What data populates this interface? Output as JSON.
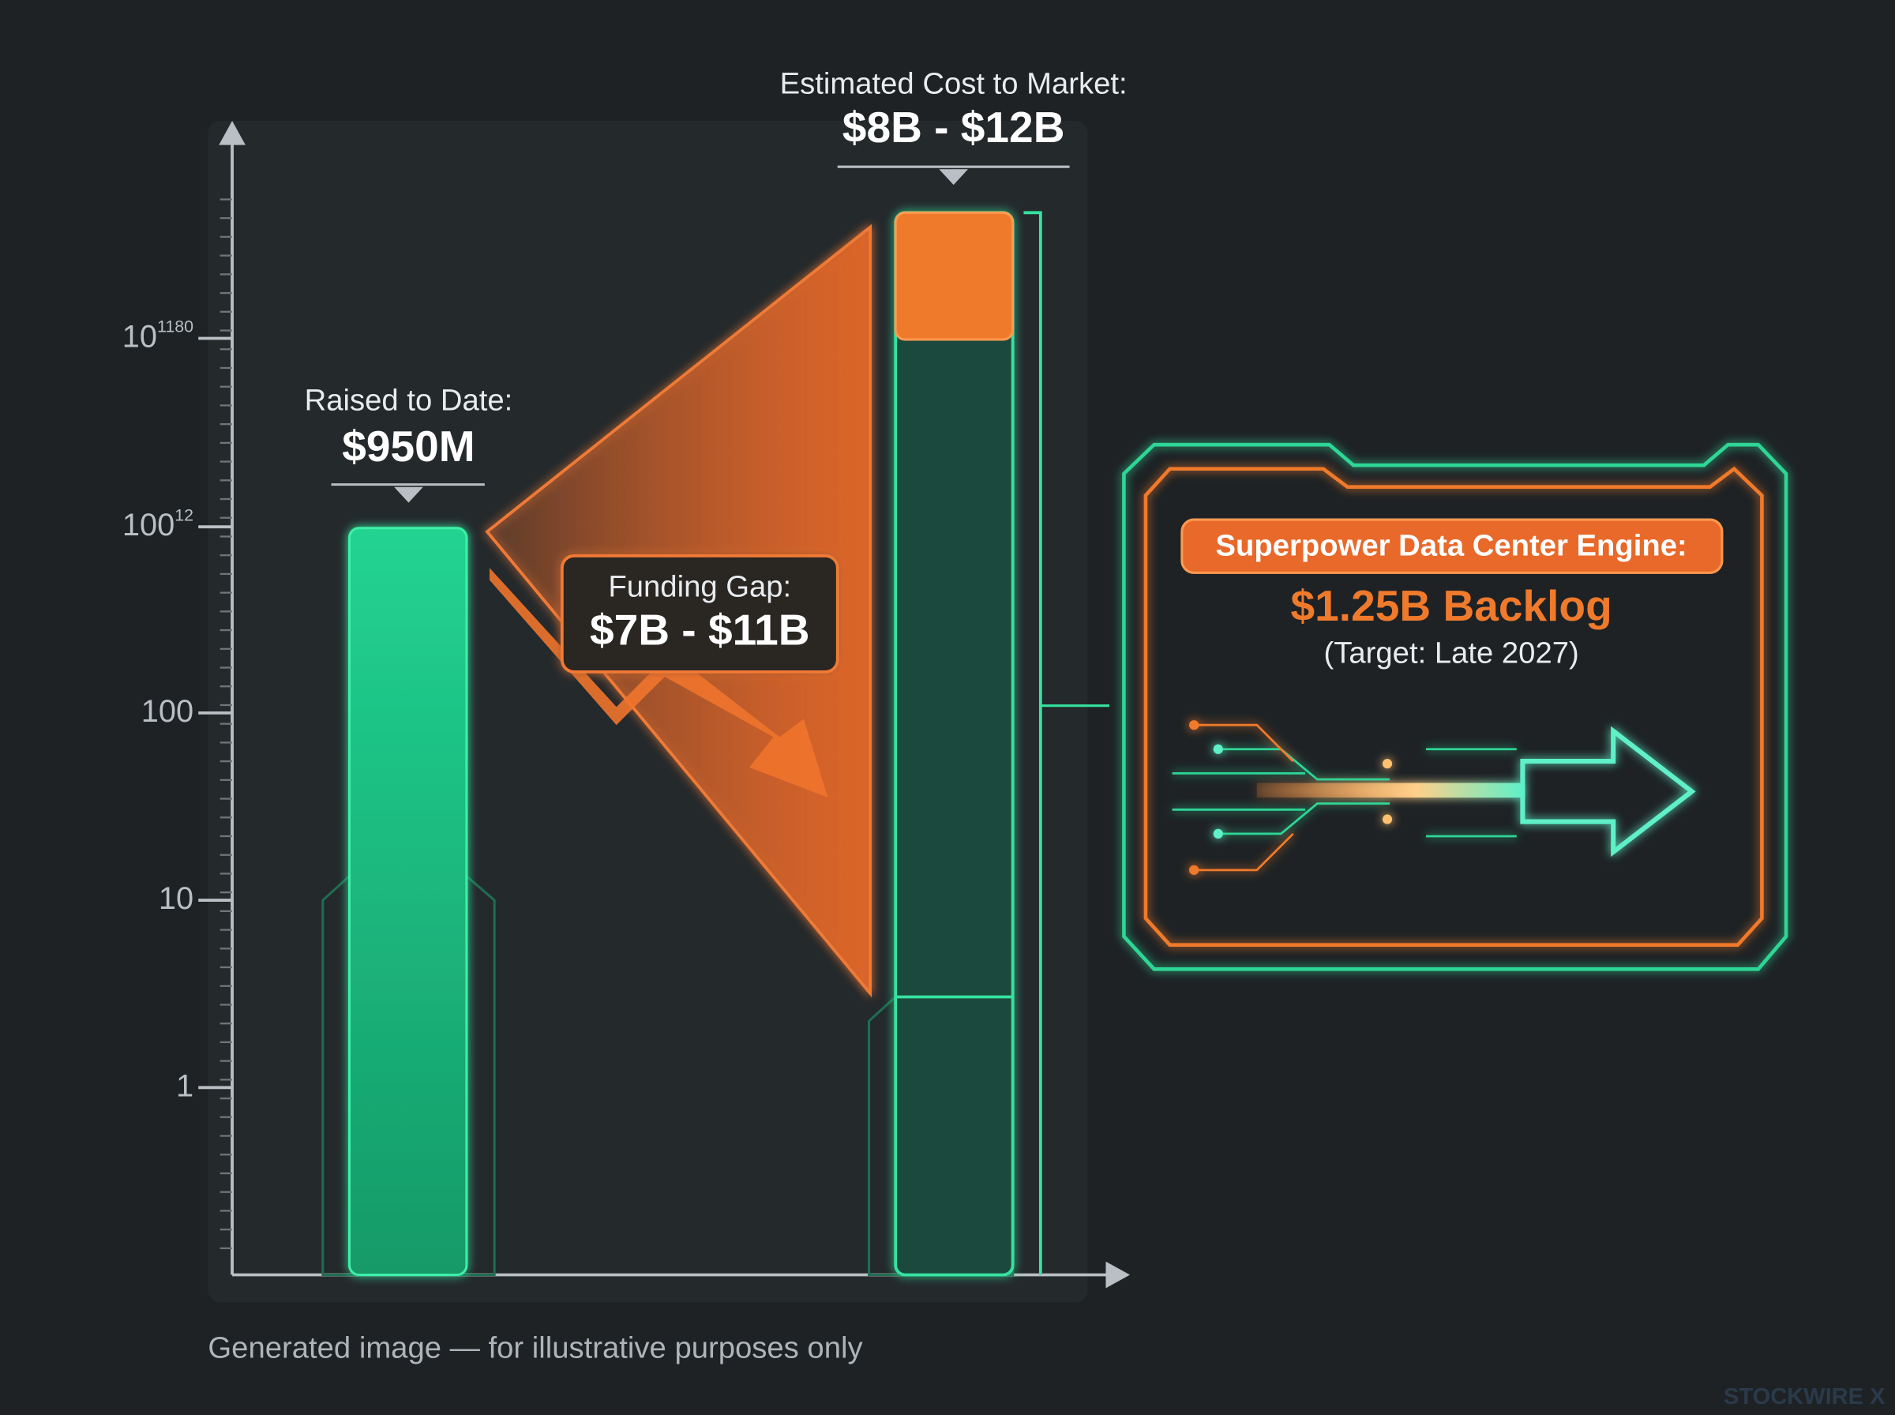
{
  "axis": {
    "y_tick_labels": [
      {
        "base": "10",
        "exp": "1180"
      },
      {
        "base": "100",
        "exp": "12"
      },
      {
        "base": "100"
      },
      {
        "base": "10"
      },
      {
        "base": "1"
      }
    ]
  },
  "raised": {
    "label": "Raised to Date:",
    "value": "$950M"
  },
  "cost": {
    "label": "Estimated Cost to Market:",
    "value": "$8B - $12B"
  },
  "gap": {
    "label": "Funding Gap:",
    "value": "$7B - $11B"
  },
  "engine": {
    "tag": "Superpower Data Center Engine:",
    "value": "$1.25B Backlog",
    "note": "(Target: Late 2027)"
  },
  "footer": "Generated image — for illustrative purposes only",
  "watermark": "STOCKWIRE X"
}
